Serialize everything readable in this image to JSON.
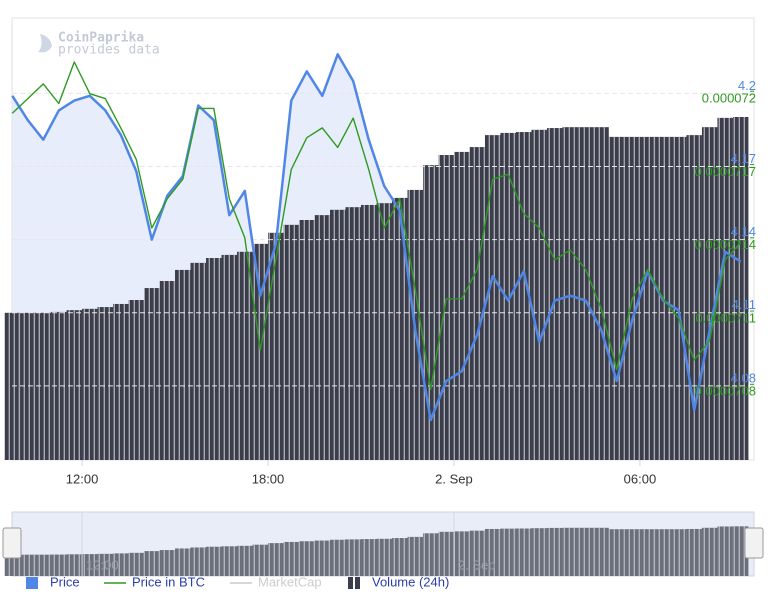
{
  "chart_data": {
    "type": "line",
    "watermark": {
      "brand": "CoinPaprika",
      "note": "provides data"
    },
    "x": [
      9.75,
      10.25,
      10.75,
      11.25,
      11.75,
      12.25,
      12.75,
      13.25,
      13.75,
      14.25,
      14.75,
      15.25,
      15.75,
      16.25,
      16.75,
      17.25,
      17.75,
      18.25,
      18.75,
      19.25,
      19.75,
      20.25,
      20.75,
      21.25,
      21.75,
      22.25,
      22.75,
      23.25,
      23.75,
      24.25,
      24.75,
      25.25,
      25.75,
      26.25,
      26.75,
      27.25,
      27.75,
      28.25,
      28.75,
      29.25,
      29.75,
      30.25,
      30.75,
      31.25,
      31.75,
      32.25,
      32.75,
      33.25
    ],
    "xlim": [
      9.74,
      33.68
    ],
    "xticks": [
      {
        "value": 12,
        "label": "12:00"
      },
      {
        "value": 18,
        "label": "18:00"
      },
      {
        "value": 24,
        "label": "2. Sep"
      },
      {
        "value": 30,
        "label": "06:00"
      }
    ],
    "ylim": [
      4.0496,
      4.2309
    ],
    "yticks": [
      4.2,
      4.17,
      4.14,
      4.11,
      4.08
    ],
    "y2lim": [
      7.049e-05,
      7.23e-05
    ],
    "y2ticks": [
      7.2e-05,
      7.17e-05,
      7.14e-05,
      7.11e-05,
      7.08e-05
    ],
    "y3lim": [
      0,
      100
    ],
    "grid": true,
    "series": [
      {
        "name": "Price",
        "color": "#5087e6",
        "area_color": "#e7edfa",
        "values": [
          4.199,
          4.189,
          4.181,
          4.193,
          4.197,
          4.199,
          4.193,
          4.183,
          4.168,
          4.14,
          4.158,
          4.166,
          4.195,
          4.189,
          4.15,
          4.16,
          4.117,
          4.138,
          4.197,
          4.209,
          4.199,
          4.216,
          4.205,
          4.181,
          4.162,
          4.152,
          4.103,
          4.066,
          4.082,
          4.086,
          4.101,
          4.125,
          4.115,
          4.127,
          4.098,
          4.115,
          4.117,
          4.115,
          4.103,
          4.082,
          4.107,
          4.127,
          4.115,
          4.111,
          4.07,
          4.103,
          4.135,
          4.131
        ]
      },
      {
        "name": "Price in BTC",
        "color": "#2f9a22",
        "axis": "y2",
        "values": [
          7.191e-05,
          7.197e-05,
          7.203e-05,
          7.195e-05,
          7.212e-05,
          7.199e-05,
          7.197e-05,
          7.185e-05,
          7.172e-05,
          7.144e-05,
          7.156e-05,
          7.164e-05,
          7.193e-05,
          7.193e-05,
          7.156e-05,
          7.14e-05,
          7.094e-05,
          7.131e-05,
          7.168e-05,
          7.181e-05,
          7.185e-05,
          7.177e-05,
          7.189e-05,
          7.168e-05,
          7.144e-05,
          7.156e-05,
          7.119e-05,
          7.078e-05,
          7.115e-05,
          7.115e-05,
          7.127e-05,
          7.164e-05,
          7.166e-05,
          7.15e-05,
          7.144e-05,
          7.131e-05,
          7.135e-05,
          7.127e-05,
          7.111e-05,
          7.086e-05,
          7.115e-05,
          7.127e-05,
          7.115e-05,
          7.107e-05,
          7.09e-05,
          7.098e-05,
          7.131e-05,
          7.138e-05
        ]
      },
      {
        "name": "MarketCap",
        "color": "#cccccc",
        "visible": false
      },
      {
        "name": "Volume (24h)",
        "type": "bar",
        "axis": "y3",
        "color": "#3b3e4a",
        "values": [
          33.3,
          33.3,
          33.3,
          33.5,
          33.9,
          34.2,
          34.6,
          35.3,
          36.2,
          38.9,
          40.5,
          43.0,
          44.6,
          45.7,
          46.4,
          47.1,
          48.9,
          51.4,
          53.2,
          54.3,
          55.4,
          56.6,
          57.2,
          57.7,
          58.1,
          59.3,
          61.1,
          66.7,
          69.0,
          69.7,
          70.8,
          73.5,
          74.0,
          74.2,
          74.7,
          75.1,
          75.3,
          75.3,
          75.3,
          73.1,
          73.1,
          73.1,
          73.1,
          73.1,
          73.5,
          75.3,
          77.4,
          77.6
        ]
      }
    ]
  }
}
